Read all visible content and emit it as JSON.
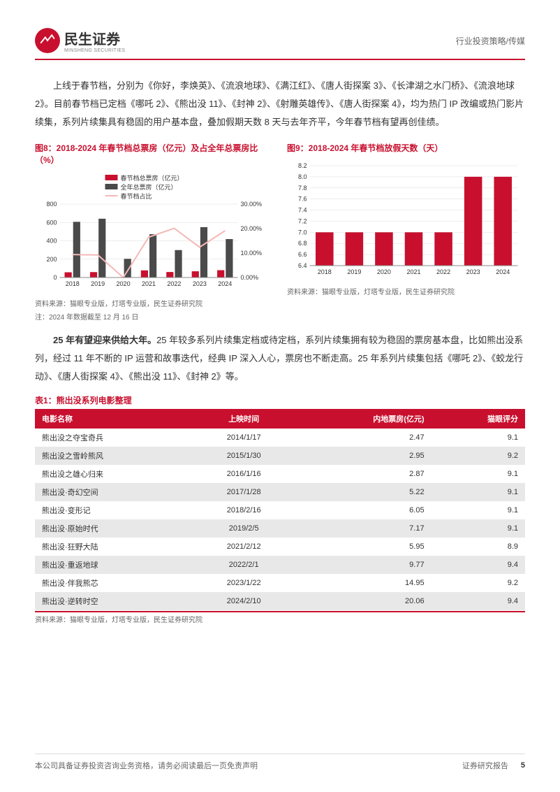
{
  "header": {
    "logo_cn": "民生证券",
    "logo_en": "MINSHENG SECURITIES",
    "right": "行业投资策略/传媒"
  },
  "para1": "上线于春节档，分别为《你好，李焕英》、《流浪地球》、《满江红》、《唐人街探案 3》、《长津湖之水门桥》、《流浪地球 2》。目前春节档已定档《哪吒 2》、《熊出没 11》、《封神 2》、《射雕英雄传》、《唐人街探案 4》，均为热门 IP 改编或热门影片续集，系列片续集具有稳固的用户基本盘，叠加假期天数 8 天与去年齐平，今年春节档有望再创佳绩。",
  "chart8": {
    "title": "图8：2018-2024 年春节档总票房（亿元）及占全年总票房比（%）",
    "legend": [
      "春节档总票房（亿元）",
      "全年总票房（亿元）",
      "春节档占比"
    ],
    "years": [
      "2018",
      "2019",
      "2020",
      "2021",
      "2022",
      "2023",
      "2024"
    ],
    "spring": [
      57,
      59,
      0,
      78,
      60,
      68,
      80
    ],
    "annual": [
      607,
      641,
      204,
      472,
      299,
      549,
      419
    ],
    "ratio": [
      9.4,
      9.2,
      0,
      16.5,
      20.1,
      12.4,
      19.1
    ],
    "y1_max": 800,
    "y1_step": 200,
    "y2_max": 30,
    "y2_step": 10,
    "colors": {
      "spring": "#c8102e",
      "annual": "#4a4a4a",
      "ratio": "#f5b8b8",
      "grid": "#ddd",
      "axis": "#888"
    },
    "source": "资料来源：猫眼专业版，灯塔专业版，民生证券研究院",
    "note": "注：2024 年数据截至 12 月 16 日"
  },
  "chart9": {
    "title": "图9：2018-2024 年春节档放假天数（天）",
    "years": [
      "2018",
      "2019",
      "2020",
      "2021",
      "2022",
      "2023",
      "2024"
    ],
    "days": [
      7,
      7,
      7,
      7,
      7,
      8,
      8
    ],
    "y_min": 6.4,
    "y_max": 8.2,
    "y_step": 0.2,
    "colors": {
      "bar": "#c8102e",
      "grid": "#ddd",
      "axis": "#888"
    },
    "source": "资料来源：猫眼专业版，灯塔专业版，民生证券研究院"
  },
  "para2_bold": "25 年有望迎来供给大年。",
  "para2": "25 年较多系列片续集定档或待定档，系列片续集拥有较为稳固的票房基本盘，比如熊出没系列，经过 11 年不断的 IP 运营和故事迭代，经典 IP 深入人心，票房也不断走高。25 年系列片续集包括《哪吒 2》、《蛟龙行动》、《唐人街探案 4》、《熊出没 11》、《封神 2》等。",
  "table": {
    "title": "表1：熊出没系列电影整理",
    "headers": [
      "电影名称",
      "上映时间",
      "内地票房(亿元)",
      "猫眼评分"
    ],
    "rows": [
      [
        "熊出没之夺宝奇兵",
        "2014/1/17",
        "2.47",
        "9.1"
      ],
      [
        "熊出没之雪岭熊风",
        "2015/1/30",
        "2.95",
        "9.2"
      ],
      [
        "熊出没之雄心归来",
        "2016/1/16",
        "2.87",
        "9.1"
      ],
      [
        "熊出没·奇幻空间",
        "2017/1/28",
        "5.22",
        "9.1"
      ],
      [
        "熊出没·变形记",
        "2018/2/16",
        "6.05",
        "9.1"
      ],
      [
        "熊出没·原始时代",
        "2019/2/5",
        "7.17",
        "9.1"
      ],
      [
        "熊出没·狂野大陆",
        "2021/2/12",
        "5.95",
        "8.9"
      ],
      [
        "熊出没·重返地球",
        "2022/2/1",
        "9.77",
        "9.4"
      ],
      [
        "熊出没·伴我熊芯",
        "2023/1/22",
        "14.95",
        "9.2"
      ],
      [
        "熊出没·逆转时空",
        "2024/2/10",
        "20.06",
        "9.4"
      ]
    ],
    "source": "资料来源：猫眼专业版，灯塔专业版，民生证券研究院"
  },
  "footer": {
    "left": "本公司具备证券投资咨询业务资格，请务必阅读最后一页免责声明",
    "right": "证券研究报告",
    "page": "5"
  }
}
